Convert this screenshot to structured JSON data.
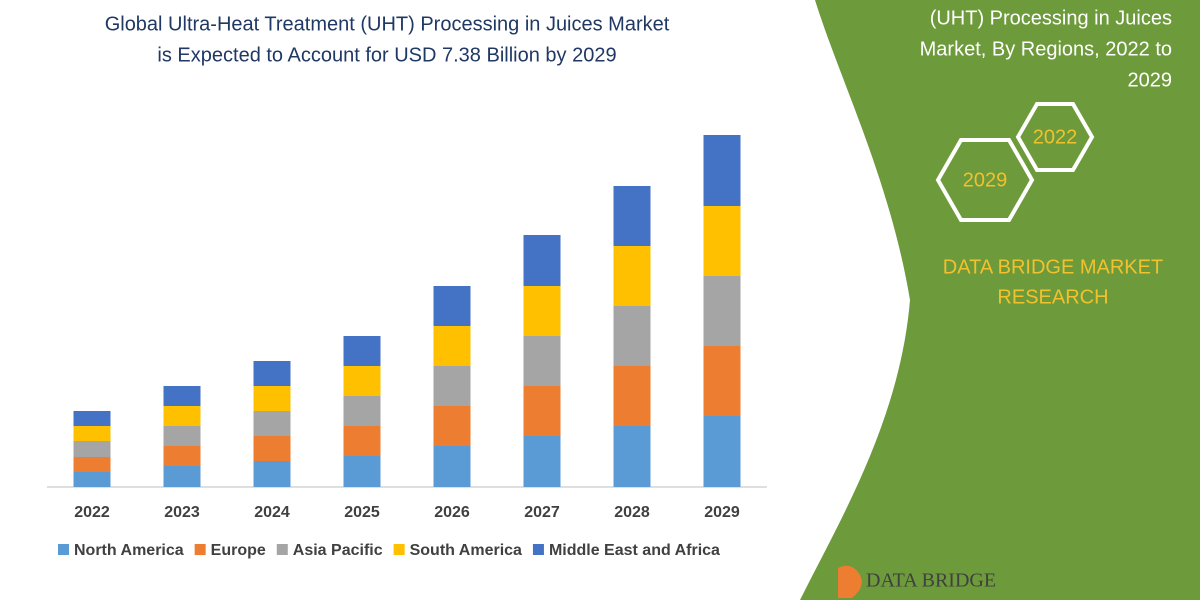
{
  "chart_data": {
    "type": "stacked-bar",
    "title": [
      "Global Ultra-Heat Treatment (UHT) Processing in Juices Market",
      "is Expected to Account for USD 7.38 Billion by 2029"
    ],
    "categories": [
      "2022",
      "2023",
      "2024",
      "2025",
      "2026",
      "2027",
      "2028",
      "2029"
    ],
    "series": [
      {
        "name": "North America",
        "color": "#5b9bd5",
        "values": [
          15,
          21,
          26,
          31,
          41,
          51,
          61,
          71
        ]
      },
      {
        "name": "Europe",
        "color": "#ed7d31",
        "values": [
          15,
          20,
          25,
          30,
          40,
          50,
          60,
          70
        ]
      },
      {
        "name": "Asia Pacific",
        "color": "#a5a5a5",
        "values": [
          16,
          20,
          25,
          30,
          40,
          50,
          60,
          70
        ]
      },
      {
        "name": "South America",
        "color": "#ffc000",
        "values": [
          15,
          20,
          25,
          30,
          40,
          50,
          60,
          70
        ]
      },
      {
        "name": "Middle East and Africa",
        "color": "#4472c4",
        "values": [
          15,
          20,
          25,
          30,
          40,
          51,
          60,
          71
        ]
      }
    ]
  },
  "side_panel": {
    "heading": [
      "(UHT) Processing in Juices",
      "Market, By Regions, 2022 to",
      "2029"
    ],
    "hexagons": [
      "2022",
      "2029"
    ],
    "brand": [
      "DATA BRIDGE MARKET",
      "RESEARCH"
    ],
    "logo": "DATA BRIDGE"
  }
}
